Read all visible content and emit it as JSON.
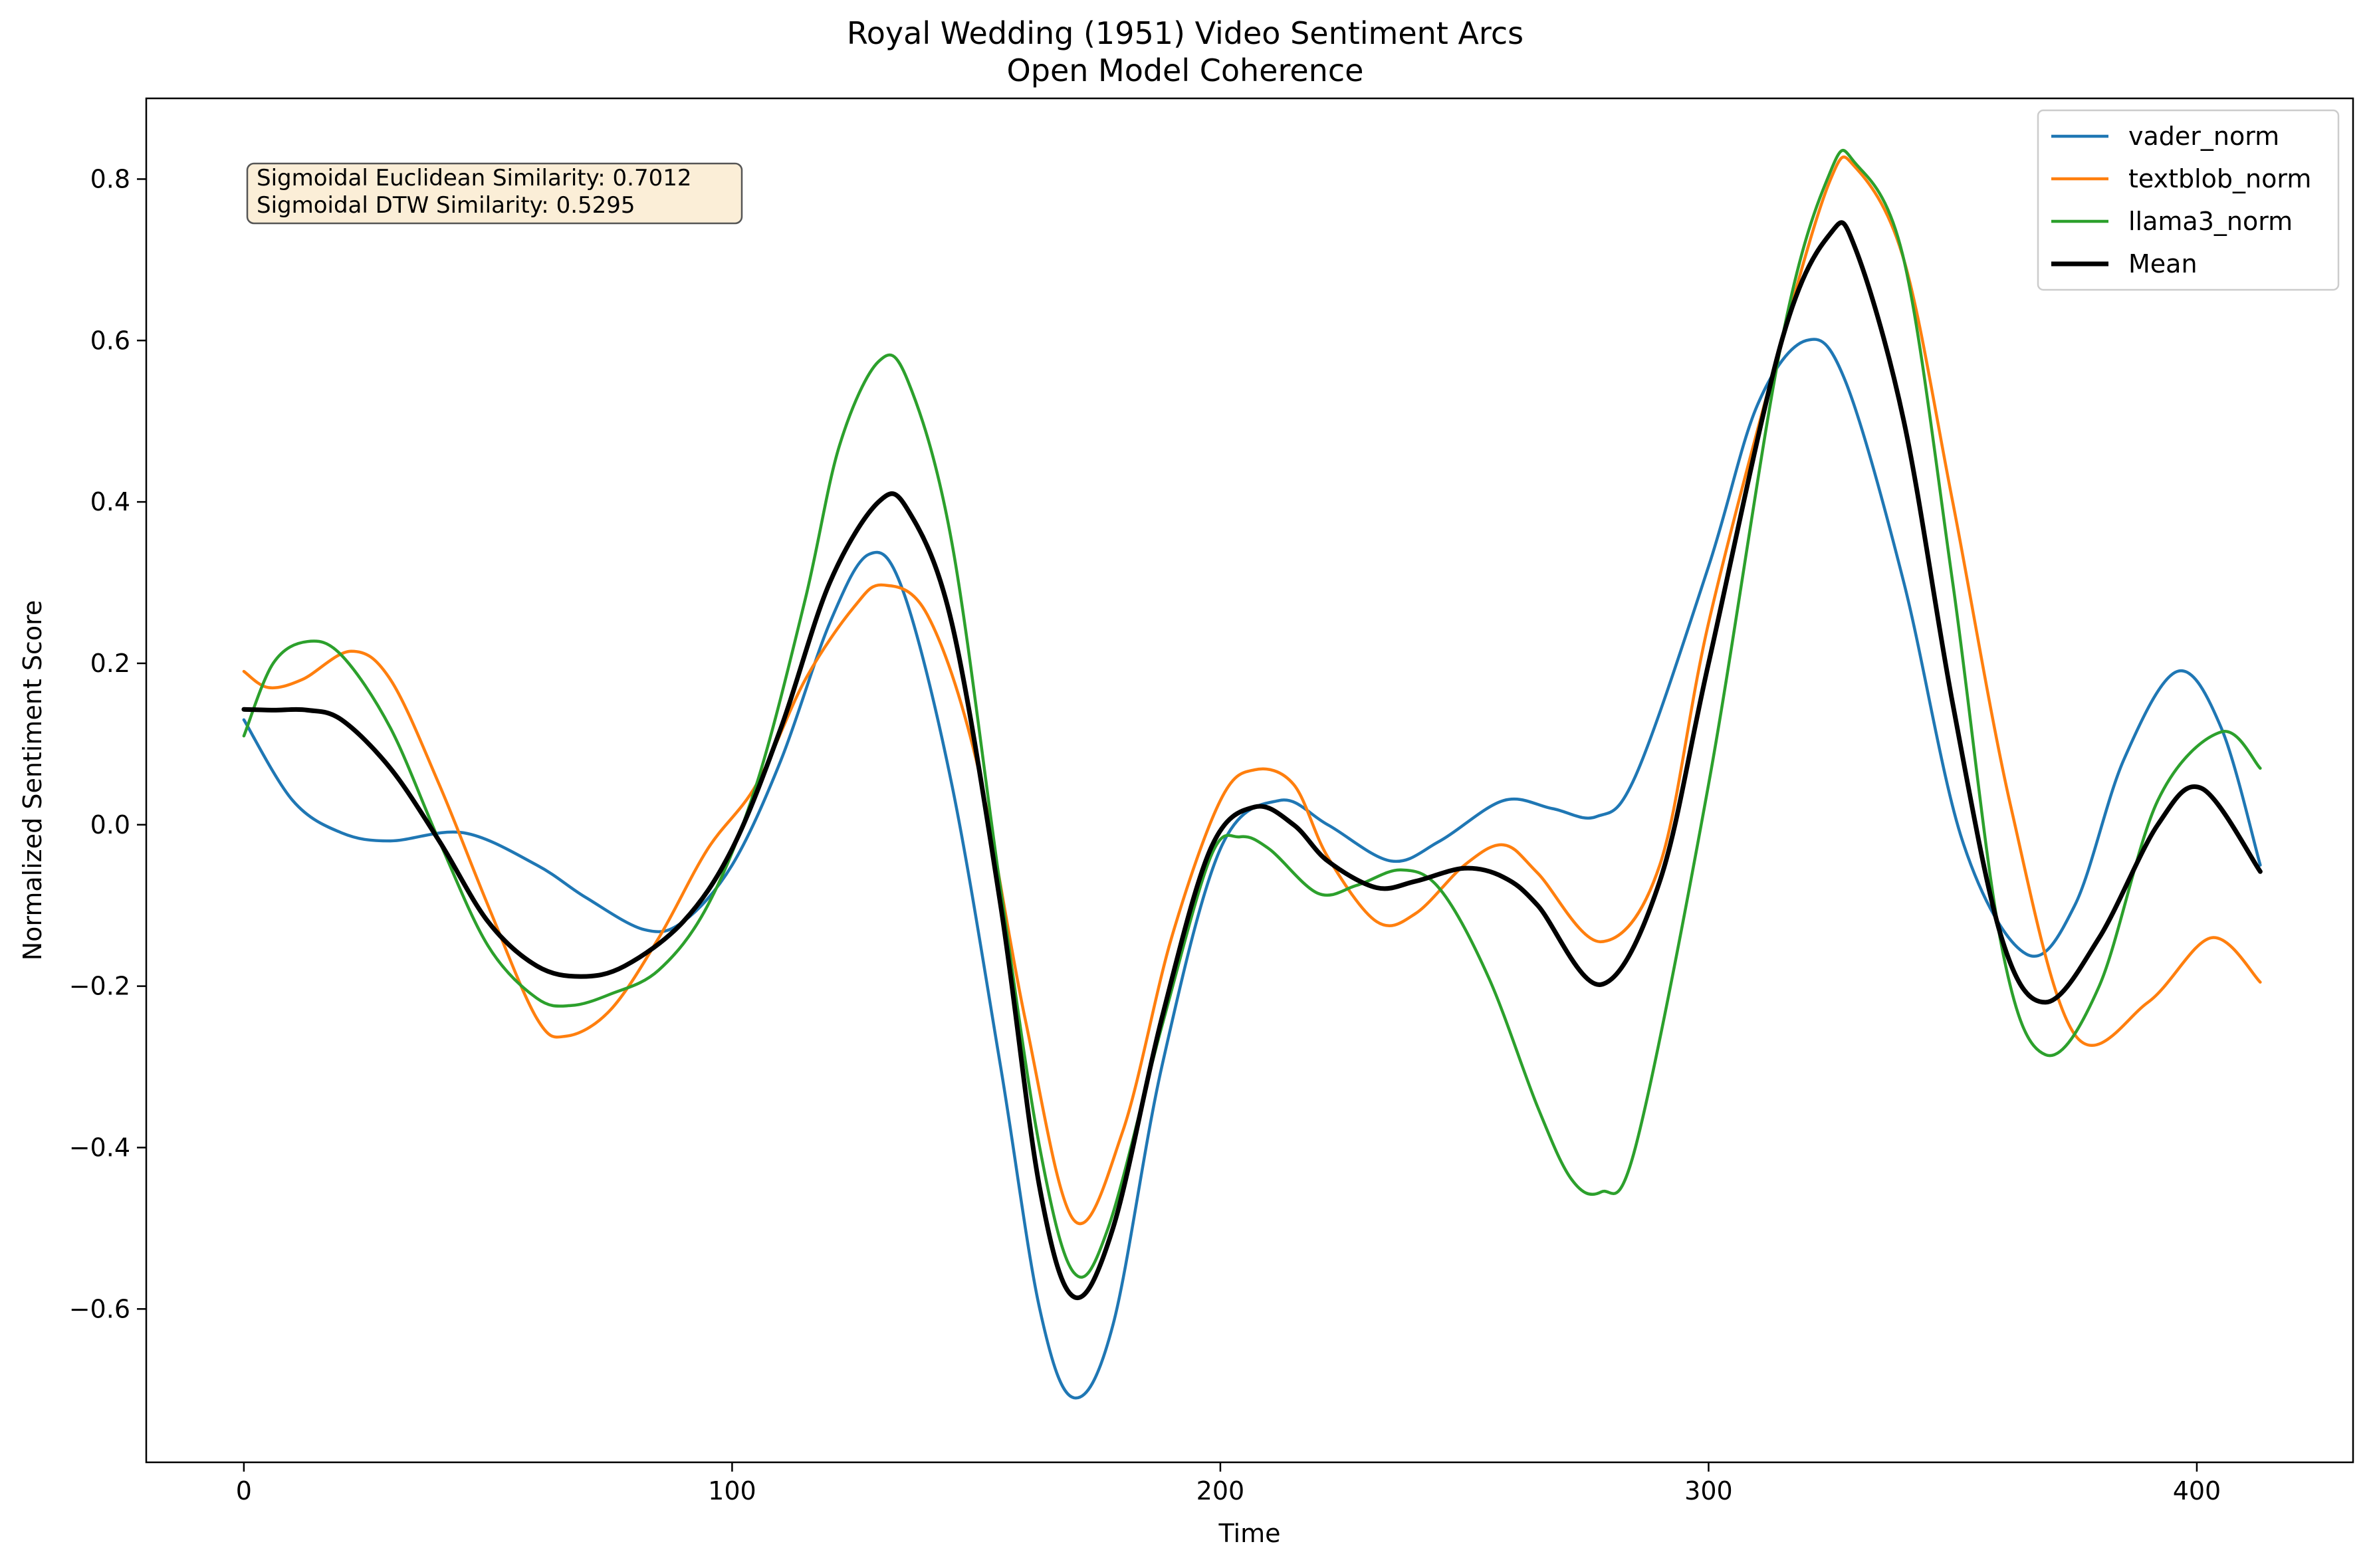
{
  "chart_data": {
    "type": "line",
    "title": "Royal Wedding (1951) Video Sentiment Arcs",
    "subtitle": "Open Model Coherence",
    "xlabel": "Time",
    "ylabel": "Normalized Sentiment Score",
    "xlim": [
      -20,
      432
    ],
    "ylim": [
      -0.79,
      0.9
    ],
    "xticks": [
      0,
      100,
      200,
      300,
      400
    ],
    "yticks": [
      -0.6,
      -0.4,
      -0.2,
      0.0,
      0.2,
      0.4,
      0.6,
      0.8
    ],
    "xtick_labels": [
      "0",
      "100",
      "200",
      "300",
      "400"
    ],
    "ytick_labels": [
      "−0.6",
      "−0.4",
      "−0.2",
      "0.0",
      "0.2",
      "0.4",
      "0.6",
      "0.8"
    ],
    "grid": false,
    "legend_position": "top-right",
    "annotation": {
      "lines": [
        "Sigmoidal Euclidean Similarity: 0.7012",
        "Sigmoidal DTW Similarity: 0.5295"
      ],
      "box_color": "#fbeed7"
    },
    "series": [
      {
        "name": "vader_norm",
        "color": "#1f77b4",
        "x": [
          0,
          10,
          20,
          30,
          45,
          60,
          70,
          82,
          90,
          100,
          110,
          120,
          128,
          135,
          145,
          155,
          163,
          170,
          178,
          188,
          200,
          212,
          222,
          235,
          245,
          258,
          268,
          277,
          285,
          300,
          310,
          320,
          328,
          340,
          352,
          365,
          375,
          385,
          396,
          405,
          413
        ],
        "values": [
          0.13,
          0.03,
          -0.01,
          -0.02,
          -0.01,
          -0.05,
          -0.09,
          -0.13,
          -0.12,
          -0.05,
          0.08,
          0.25,
          0.335,
          0.29,
          0.05,
          -0.3,
          -0.6,
          -0.71,
          -0.62,
          -0.3,
          -0.03,
          0.03,
          0.0,
          -0.045,
          -0.02,
          0.03,
          0.02,
          0.01,
          0.06,
          0.32,
          0.52,
          0.6,
          0.55,
          0.3,
          -0.02,
          -0.16,
          -0.1,
          0.08,
          0.19,
          0.12,
          -0.05
        ]
      },
      {
        "name": "textblob_norm",
        "color": "#ff7f0e",
        "x": [
          0,
          5,
          12,
          22,
          30,
          40,
          50,
          60,
          66,
          75,
          85,
          95,
          105,
          115,
          125,
          131,
          140,
          150,
          160,
          170,
          180,
          190,
          200,
          207,
          215,
          222,
          232,
          240,
          250,
          258,
          265,
          278,
          290,
          300,
          315,
          325,
          330,
          340,
          350,
          362,
          375,
          390,
          403,
          413
        ],
        "values": [
          0.19,
          0.17,
          0.18,
          0.215,
          0.18,
          0.05,
          -0.1,
          -0.24,
          -0.262,
          -0.23,
          -0.14,
          -0.03,
          0.05,
          0.18,
          0.27,
          0.297,
          0.26,
          0.08,
          -0.24,
          -0.49,
          -0.38,
          -0.14,
          0.03,
          0.068,
          0.05,
          -0.04,
          -0.12,
          -0.11,
          -0.05,
          -0.025,
          -0.06,
          -0.145,
          -0.05,
          0.25,
          0.6,
          0.8,
          0.815,
          0.7,
          0.4,
          0.02,
          -0.26,
          -0.22,
          -0.14,
          -0.195
        ]
      },
      {
        "name": "llama3_norm",
        "color": "#2ca02c",
        "x": [
          0,
          6,
          13,
          20,
          30,
          40,
          50,
          60,
          67,
          75,
          85,
          95,
          105,
          115,
          122,
          130,
          136,
          145,
          155,
          163,
          170,
          177,
          188,
          198,
          204,
          210,
          220,
          228,
          237,
          245,
          255,
          265,
          272,
          278,
          285,
          300,
          315,
          325,
          330,
          340,
          350,
          360,
          369,
          380,
          392,
          405,
          413
        ],
        "values": [
          0.11,
          0.2,
          0.227,
          0.21,
          0.12,
          -0.02,
          -0.15,
          -0.215,
          -0.224,
          -0.21,
          -0.18,
          -0.1,
          0.05,
          0.28,
          0.47,
          0.574,
          0.55,
          0.35,
          -0.08,
          -0.4,
          -0.555,
          -0.5,
          -0.25,
          -0.04,
          -0.015,
          -0.03,
          -0.085,
          -0.075,
          -0.056,
          -0.08,
          -0.19,
          -0.35,
          -0.44,
          -0.455,
          -0.4,
          0.05,
          0.6,
          0.81,
          0.82,
          0.7,
          0.3,
          -0.15,
          -0.285,
          -0.2,
          0.03,
          0.115,
          0.07
        ]
      },
      {
        "name": "Mean",
        "color": "#000000",
        "x": [
          0,
          6,
          13,
          20,
          30,
          40,
          50,
          60,
          69,
          78,
          90,
          100,
          110,
          120,
          130,
          136,
          145,
          155,
          163,
          170,
          178,
          188,
          198,
          207,
          215,
          222,
          232,
          240,
          250,
          258,
          265,
          278,
          290,
          300,
          315,
          325,
          330,
          340,
          350,
          360,
          369,
          380,
          392,
          401,
          413
        ],
        "values": [
          0.143,
          0.142,
          0.142,
          0.13,
          0.07,
          -0.02,
          -0.12,
          -0.175,
          -0.188,
          -0.175,
          -0.12,
          -0.03,
          0.12,
          0.3,
          0.4,
          0.39,
          0.25,
          -0.1,
          -0.45,
          -0.585,
          -0.5,
          -0.24,
          -0.03,
          0.022,
          0.0,
          -0.045,
          -0.078,
          -0.07,
          -0.054,
          -0.065,
          -0.1,
          -0.198,
          -0.07,
          0.2,
          0.6,
          0.733,
          0.715,
          0.5,
          0.15,
          -0.14,
          -0.22,
          -0.14,
          0.0,
          0.045,
          -0.058
        ]
      }
    ]
  }
}
